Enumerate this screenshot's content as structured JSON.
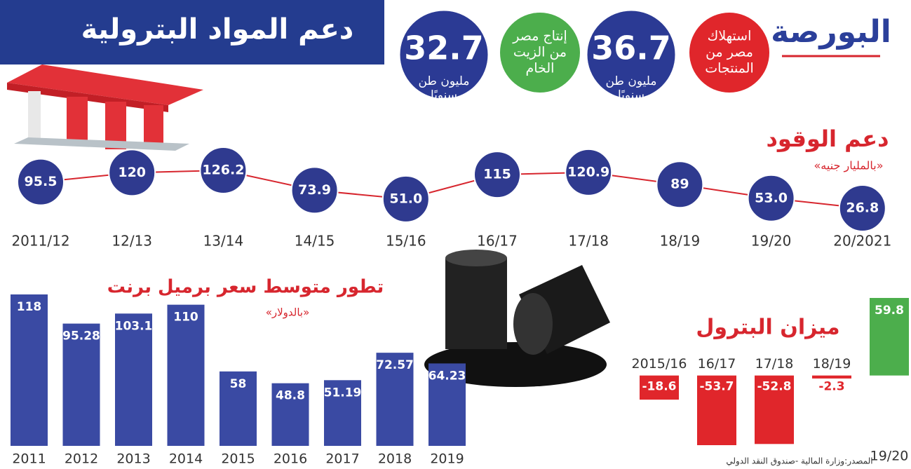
{
  "header": {
    "title": "دعم المواد البترولية",
    "logo": "البورصة"
  },
  "stats": [
    {
      "label": [
        "استهلاك",
        "مصر من",
        "المنتجات"
      ],
      "value": 36.7,
      "unit": [
        "مليون طن",
        "سنويًا"
      ]
    },
    {
      "label": [
        "إنتاج مصر",
        "من الزيت",
        "الخام"
      ],
      "value": 32.7,
      "unit": [
        "مليون طن",
        "سنويًا"
      ]
    }
  ],
  "chart_data": [
    {
      "type": "line",
      "title": "دعم الوقود",
      "subtitle": "«بالمليار جنيه»",
      "categories": [
        "2011/12",
        "12/13",
        "13/14",
        "14/15",
        "15/16",
        "16/17",
        "17/18",
        "18/19",
        "19/20",
        "20/2021"
      ],
      "values": [
        95.5,
        120,
        126.2,
        73.9,
        51.0,
        115,
        120.9,
        89,
        53.0,
        26.8
      ],
      "value_labels": [
        "95.5",
        "120",
        "126.2",
        "73.9",
        "51.0",
        "115",
        "120.9",
        "89",
        "53.0",
        "26.8"
      ],
      "color": "#d7262e",
      "marker_color": "#2f3a8f"
    },
    {
      "type": "bar",
      "title": "تطور متوسط سعر برميل برنت",
      "subtitle": "«بالدولار»",
      "categories": [
        "2011",
        "2012",
        "2013",
        "2014",
        "2015",
        "2016",
        "2017",
        "2018",
        "2019"
      ],
      "values": [
        118,
        95.28,
        103.1,
        110,
        58,
        48.8,
        51.19,
        72.57,
        64.23
      ],
      "color": "#3a4aa3"
    },
    {
      "type": "bar",
      "title": "ميزان البترول",
      "categories": [
        "2015/16",
        "16/17",
        "17/18",
        "18/19",
        "19/20"
      ],
      "values": [
        -18.6,
        -53.7,
        -52.8,
        -2.3,
        59.8
      ],
      "color": "#4cae4c",
      "negative_color": "#e0262b"
    }
  ],
  "source": "المصدر:وزارة المالية -صندوق النقد الدولي"
}
